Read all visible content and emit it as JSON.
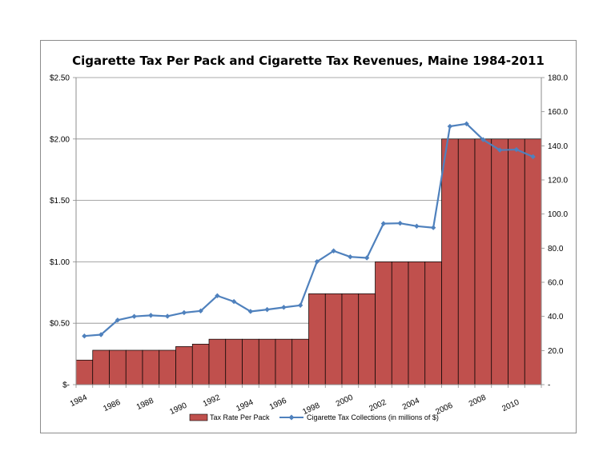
{
  "chart_data": {
    "type": "bar",
    "title": "Cigarette Tax Per Pack and Cigarette Tax Revenues, Maine 1984-2011",
    "x": [
      1984,
      1985,
      1986,
      1987,
      1988,
      1989,
      1990,
      1991,
      1992,
      1993,
      1994,
      1995,
      1996,
      1997,
      1998,
      1999,
      2000,
      2001,
      2002,
      2003,
      2004,
      2005,
      2006,
      2007,
      2008,
      2009,
      2010,
      2011
    ],
    "x_tick_labels": [
      "1984",
      "1986",
      "1988",
      "1990",
      "1992",
      "1994",
      "1996",
      "1998",
      "2000",
      "2002",
      "2004",
      "2006",
      "2008",
      "2010"
    ],
    "y_left": {
      "ylim": [
        0,
        2.5
      ],
      "tick_values": [
        0,
        0.5,
        1.0,
        1.5,
        2.0,
        2.5
      ],
      "tick_labels": [
        "$-",
        "$0.50",
        "$1.00",
        "$1.50",
        "$2.00",
        "$2.50"
      ]
    },
    "y_right": {
      "ylim": [
        0,
        180
      ],
      "tick_values": [
        0,
        20,
        40,
        60,
        80,
        100,
        120,
        140,
        160,
        180
      ],
      "tick_labels": [
        "-",
        "20.0",
        "40.0",
        "60.0",
        "80.0",
        "100.0",
        "120.0",
        "140.0",
        "160.0",
        "180.0"
      ]
    },
    "grid": "horizontal major gridlines",
    "legend_position": "bottom",
    "series": [
      {
        "name": "Tax Rate Per Pack",
        "type": "bar",
        "axis": "left",
        "color": "#c0504d",
        "values": [
          0.2,
          0.28,
          0.28,
          0.28,
          0.28,
          0.28,
          0.31,
          0.33,
          0.37,
          0.37,
          0.37,
          0.37,
          0.37,
          0.37,
          0.74,
          0.74,
          0.74,
          0.74,
          1.0,
          1.0,
          1.0,
          1.0,
          2.0,
          2.0,
          2.0,
          2.0,
          2.0,
          2.0
        ]
      },
      {
        "name": "Cigarette Tax Collections (in millions of $)",
        "type": "line",
        "axis": "right",
        "color": "#4f81bd",
        "values": [
          28.5,
          29.3,
          37.8,
          40.0,
          40.6,
          40.1,
          42.2,
          43.2,
          52.1,
          48.7,
          42.9,
          44.0,
          45.3,
          46.5,
          72.1,
          78.4,
          74.9,
          74.3,
          94.4,
          94.6,
          92.9,
          92.0,
          151.4,
          152.9,
          143.6,
          137.5,
          137.8,
          133.6
        ]
      }
    ]
  }
}
